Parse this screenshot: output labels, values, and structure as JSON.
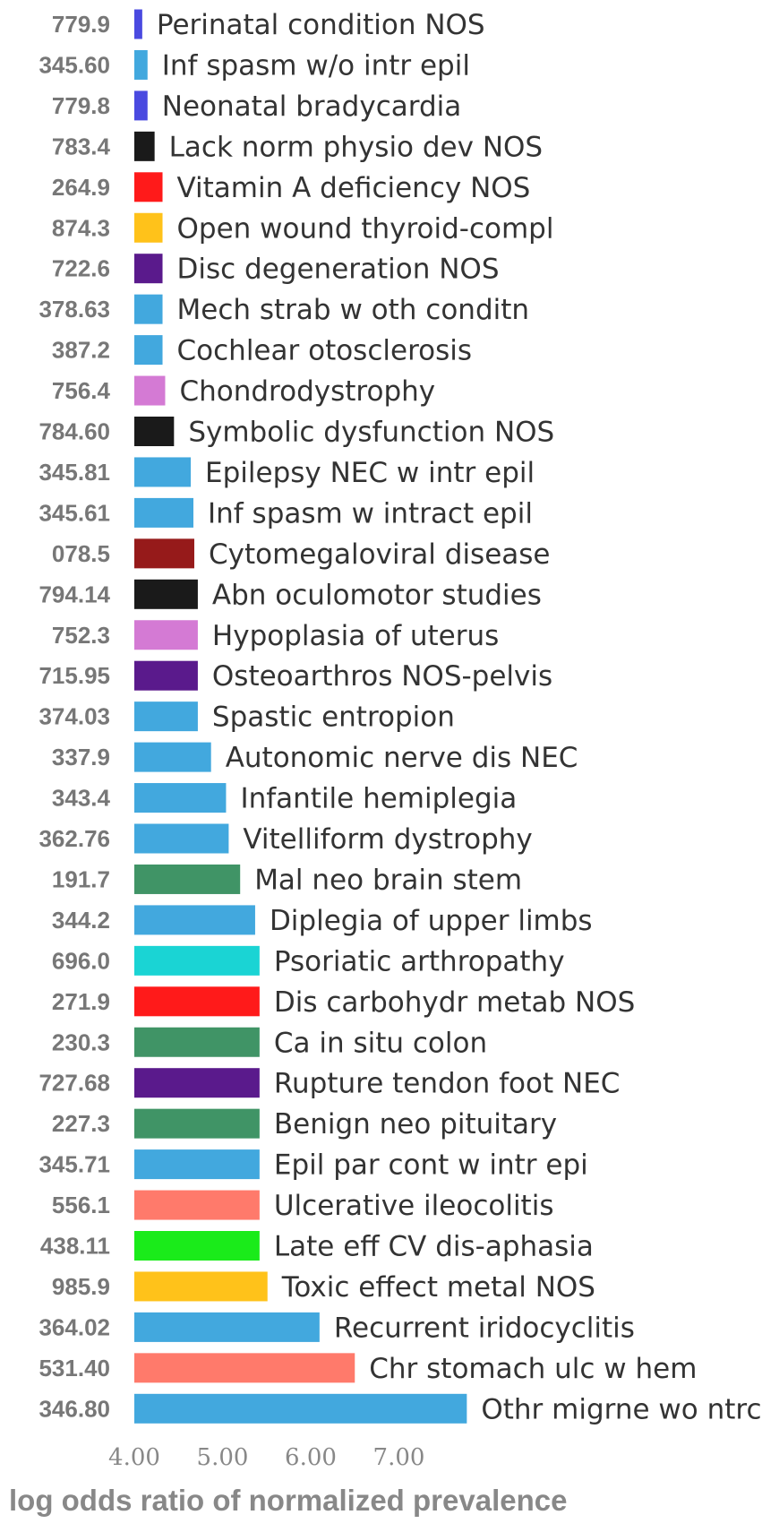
{
  "chart_data": {
    "type": "bar",
    "orientation": "horizontal",
    "xlabel": "log odds ratio of normalized prevalence",
    "xticks": [
      "4.00",
      "5.00",
      "6.00",
      "7.00"
    ],
    "xlim": [
      4.0,
      8.0
    ],
    "grid": false,
    "legend": "none",
    "categories": [
      {
        "code": "779.9",
        "name": "Perinatal condition NOS",
        "value": 4.09,
        "color": "#4a4ae0"
      },
      {
        "code": "345.60",
        "name": "Inf spasm w/o intr epil",
        "value": 4.15,
        "color": "#42a8de"
      },
      {
        "code": "779.8",
        "name": "Neonatal bradycardia",
        "value": 4.15,
        "color": "#4a4ae0"
      },
      {
        "code": "783.4",
        "name": "Lack norm physio dev NOS",
        "value": 4.23,
        "color": "#1a1a1a"
      },
      {
        "code": "264.9",
        "name": "Vitamin A deficiency NOS",
        "value": 4.32,
        "color": "#ff1a1a"
      },
      {
        "code": "874.3",
        "name": "Open wound thyroid-compl",
        "value": 4.32,
        "color": "#ffc21a"
      },
      {
        "code": "722.6",
        "name": "Disc degeneration NOS",
        "value": 4.32,
        "color": "#5a1a8c"
      },
      {
        "code": "378.63",
        "name": "Mech strab w oth conditn",
        "value": 4.32,
        "color": "#42a8de"
      },
      {
        "code": "387.2",
        "name": "Cochlear otosclerosis",
        "value": 4.32,
        "color": "#42a8de"
      },
      {
        "code": "756.4",
        "name": "Chondrodystrophy",
        "value": 4.35,
        "color": "#d47ad4"
      },
      {
        "code": "784.60",
        "name": "Symbolic dysfunction NOS",
        "value": 4.45,
        "color": "#1a1a1a"
      },
      {
        "code": "345.81",
        "name": "Epilepsy NEC w intr epil",
        "value": 4.64,
        "color": "#42a8de"
      },
      {
        "code": "345.61",
        "name": "Inf spasm w intract epil",
        "value": 4.67,
        "color": "#42a8de"
      },
      {
        "code": "078.5",
        "name": "Cytomegaloviral disease",
        "value": 4.68,
        "color": "#961a1a"
      },
      {
        "code": "794.14",
        "name": "Abn oculomotor studies",
        "value": 4.72,
        "color": "#1a1a1a"
      },
      {
        "code": "752.3",
        "name": "Hypoplasia of uterus",
        "value": 4.72,
        "color": "#d47ad4"
      },
      {
        "code": "715.95",
        "name": "Osteoarthros NOS-pelvis",
        "value": 4.72,
        "color": "#5a1a8c"
      },
      {
        "code": "374.03",
        "name": "Spastic entropion",
        "value": 4.72,
        "color": "#42a8de"
      },
      {
        "code": "337.9",
        "name": "Autonomic nerve dis NEC",
        "value": 4.87,
        "color": "#42a8de"
      },
      {
        "code": "343.4",
        "name": "Infantile hemiplegia",
        "value": 5.04,
        "color": "#42a8de"
      },
      {
        "code": "362.76",
        "name": "Vitelliform dystrophy",
        "value": 5.07,
        "color": "#42a8de"
      },
      {
        "code": "191.7",
        "name": "Mal neo brain stem",
        "value": 5.2,
        "color": "#409466"
      },
      {
        "code": "344.2",
        "name": "Diplegia of upper limbs",
        "value": 5.37,
        "color": "#42a8de"
      },
      {
        "code": "696.0",
        "name": "Psoriatic arthropathy",
        "value": 5.42,
        "color": "#1ad4d4"
      },
      {
        "code": "271.9",
        "name": "Dis carbohydr metab NOS",
        "value": 5.42,
        "color": "#ff1a1a"
      },
      {
        "code": "230.3",
        "name": "Ca in situ colon",
        "value": 5.42,
        "color": "#409466"
      },
      {
        "code": "727.68",
        "name": "Rupture tendon foot NEC",
        "value": 5.42,
        "color": "#5a1a8c"
      },
      {
        "code": "227.3",
        "name": "Benign neo pituitary",
        "value": 5.42,
        "color": "#409466"
      },
      {
        "code": "345.71",
        "name": "Epil par cont w intr epi",
        "value": 5.42,
        "color": "#42a8de"
      },
      {
        "code": "556.1",
        "name": "Ulcerative ileocolitis",
        "value": 5.42,
        "color": "#ff7a6b"
      },
      {
        "code": "438.11",
        "name": "Late eff CV dis-aphasia",
        "value": 5.42,
        "color": "#1aeb1a"
      },
      {
        "code": "985.9",
        "name": "Toxic effect metal NOS",
        "value": 5.51,
        "color": "#ffc21a"
      },
      {
        "code": "364.02",
        "name": "Recurrent iridocyclitis",
        "value": 6.1,
        "color": "#42a8de"
      },
      {
        "code": "531.40",
        "name": "Chr stomach ulc w hem",
        "value": 6.5,
        "color": "#ff7a6b"
      },
      {
        "code": "346.80",
        "name": "Othr migrne wo ntrc",
        "value": 7.77,
        "color": "#42a8de"
      }
    ]
  }
}
